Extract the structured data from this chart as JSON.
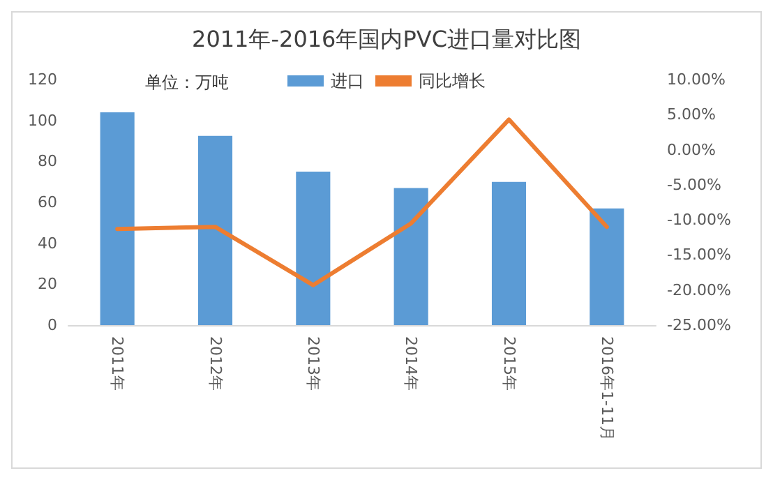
{
  "chart_data": {
    "type": "bar",
    "title": "2011年-2016年国内PVC进口量对比图",
    "annotations": [
      "单位：万吨"
    ],
    "categories": [
      "2011年",
      "2012年",
      "2013年",
      "2014年",
      "2015年",
      "2016年1-11月"
    ],
    "series": [
      {
        "name": "进口",
        "color": "#5b9bd5",
        "values": [
          104,
          92.5,
          75,
          67,
          70,
          57
        ]
      },
      {
        "name": "同比增长",
        "type": "line",
        "axis": "y2",
        "color": "#ed7d31",
        "values": [
          -11.3,
          -11,
          -19.3,
          -10.5,
          4.3,
          -11
        ]
      }
    ],
    "ylim": [
      0,
      120
    ],
    "yticks": [
      0,
      20,
      40,
      60,
      80,
      100,
      120
    ],
    "y2lim": [
      -25,
      10
    ],
    "y2ticks": [
      {
        "value": -25,
        "label": "-25.00%"
      },
      {
        "value": -20,
        "label": "-20.00%"
      },
      {
        "value": -15,
        "label": "-15.00%"
      },
      {
        "value": -10,
        "label": "-10.00%"
      },
      {
        "value": -5,
        "label": "-5.00%"
      },
      {
        "value": 0,
        "label": "0.00%"
      },
      {
        "value": 5,
        "label": "5.00%"
      },
      {
        "value": 10,
        "label": "10.00%"
      }
    ],
    "legend": "top",
    "grid": false,
    "marker": "none",
    "line_style": "solid"
  }
}
